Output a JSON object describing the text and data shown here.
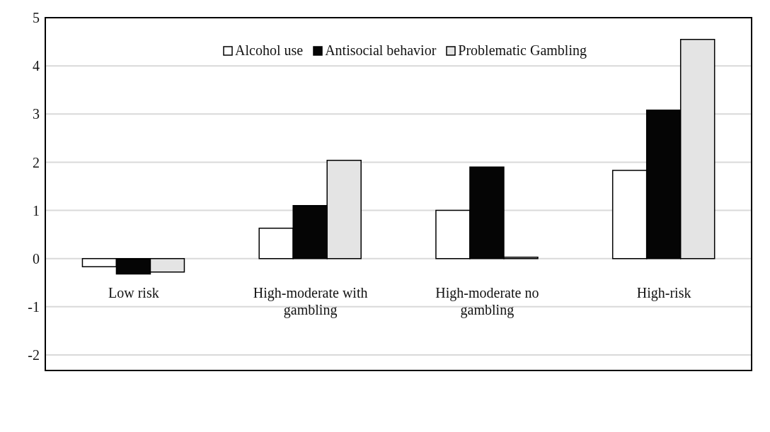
{
  "chart_data": {
    "type": "bar",
    "categories": [
      "Low risk",
      "High-moderate with gambling",
      "High-moderate no gambling",
      "High-risk"
    ],
    "series": [
      {
        "name": "Alcohol use",
        "color": "#ffffff",
        "values": [
          -0.17,
          0.63,
          1.0,
          1.83
        ]
      },
      {
        "name": "Antisocial behavior",
        "color": "#050505",
        "values": [
          -0.32,
          1.1,
          1.9,
          3.08
        ]
      },
      {
        "name": "Problematic Gambling",
        "color": "#e4e4e4",
        "values": [
          -0.28,
          2.04,
          0.03,
          4.55
        ]
      }
    ],
    "ylim": [
      -2,
      5
    ],
    "yticks": [
      -2,
      -1,
      0,
      1,
      2,
      3,
      4,
      5
    ],
    "grid": "y",
    "legend": "top"
  }
}
